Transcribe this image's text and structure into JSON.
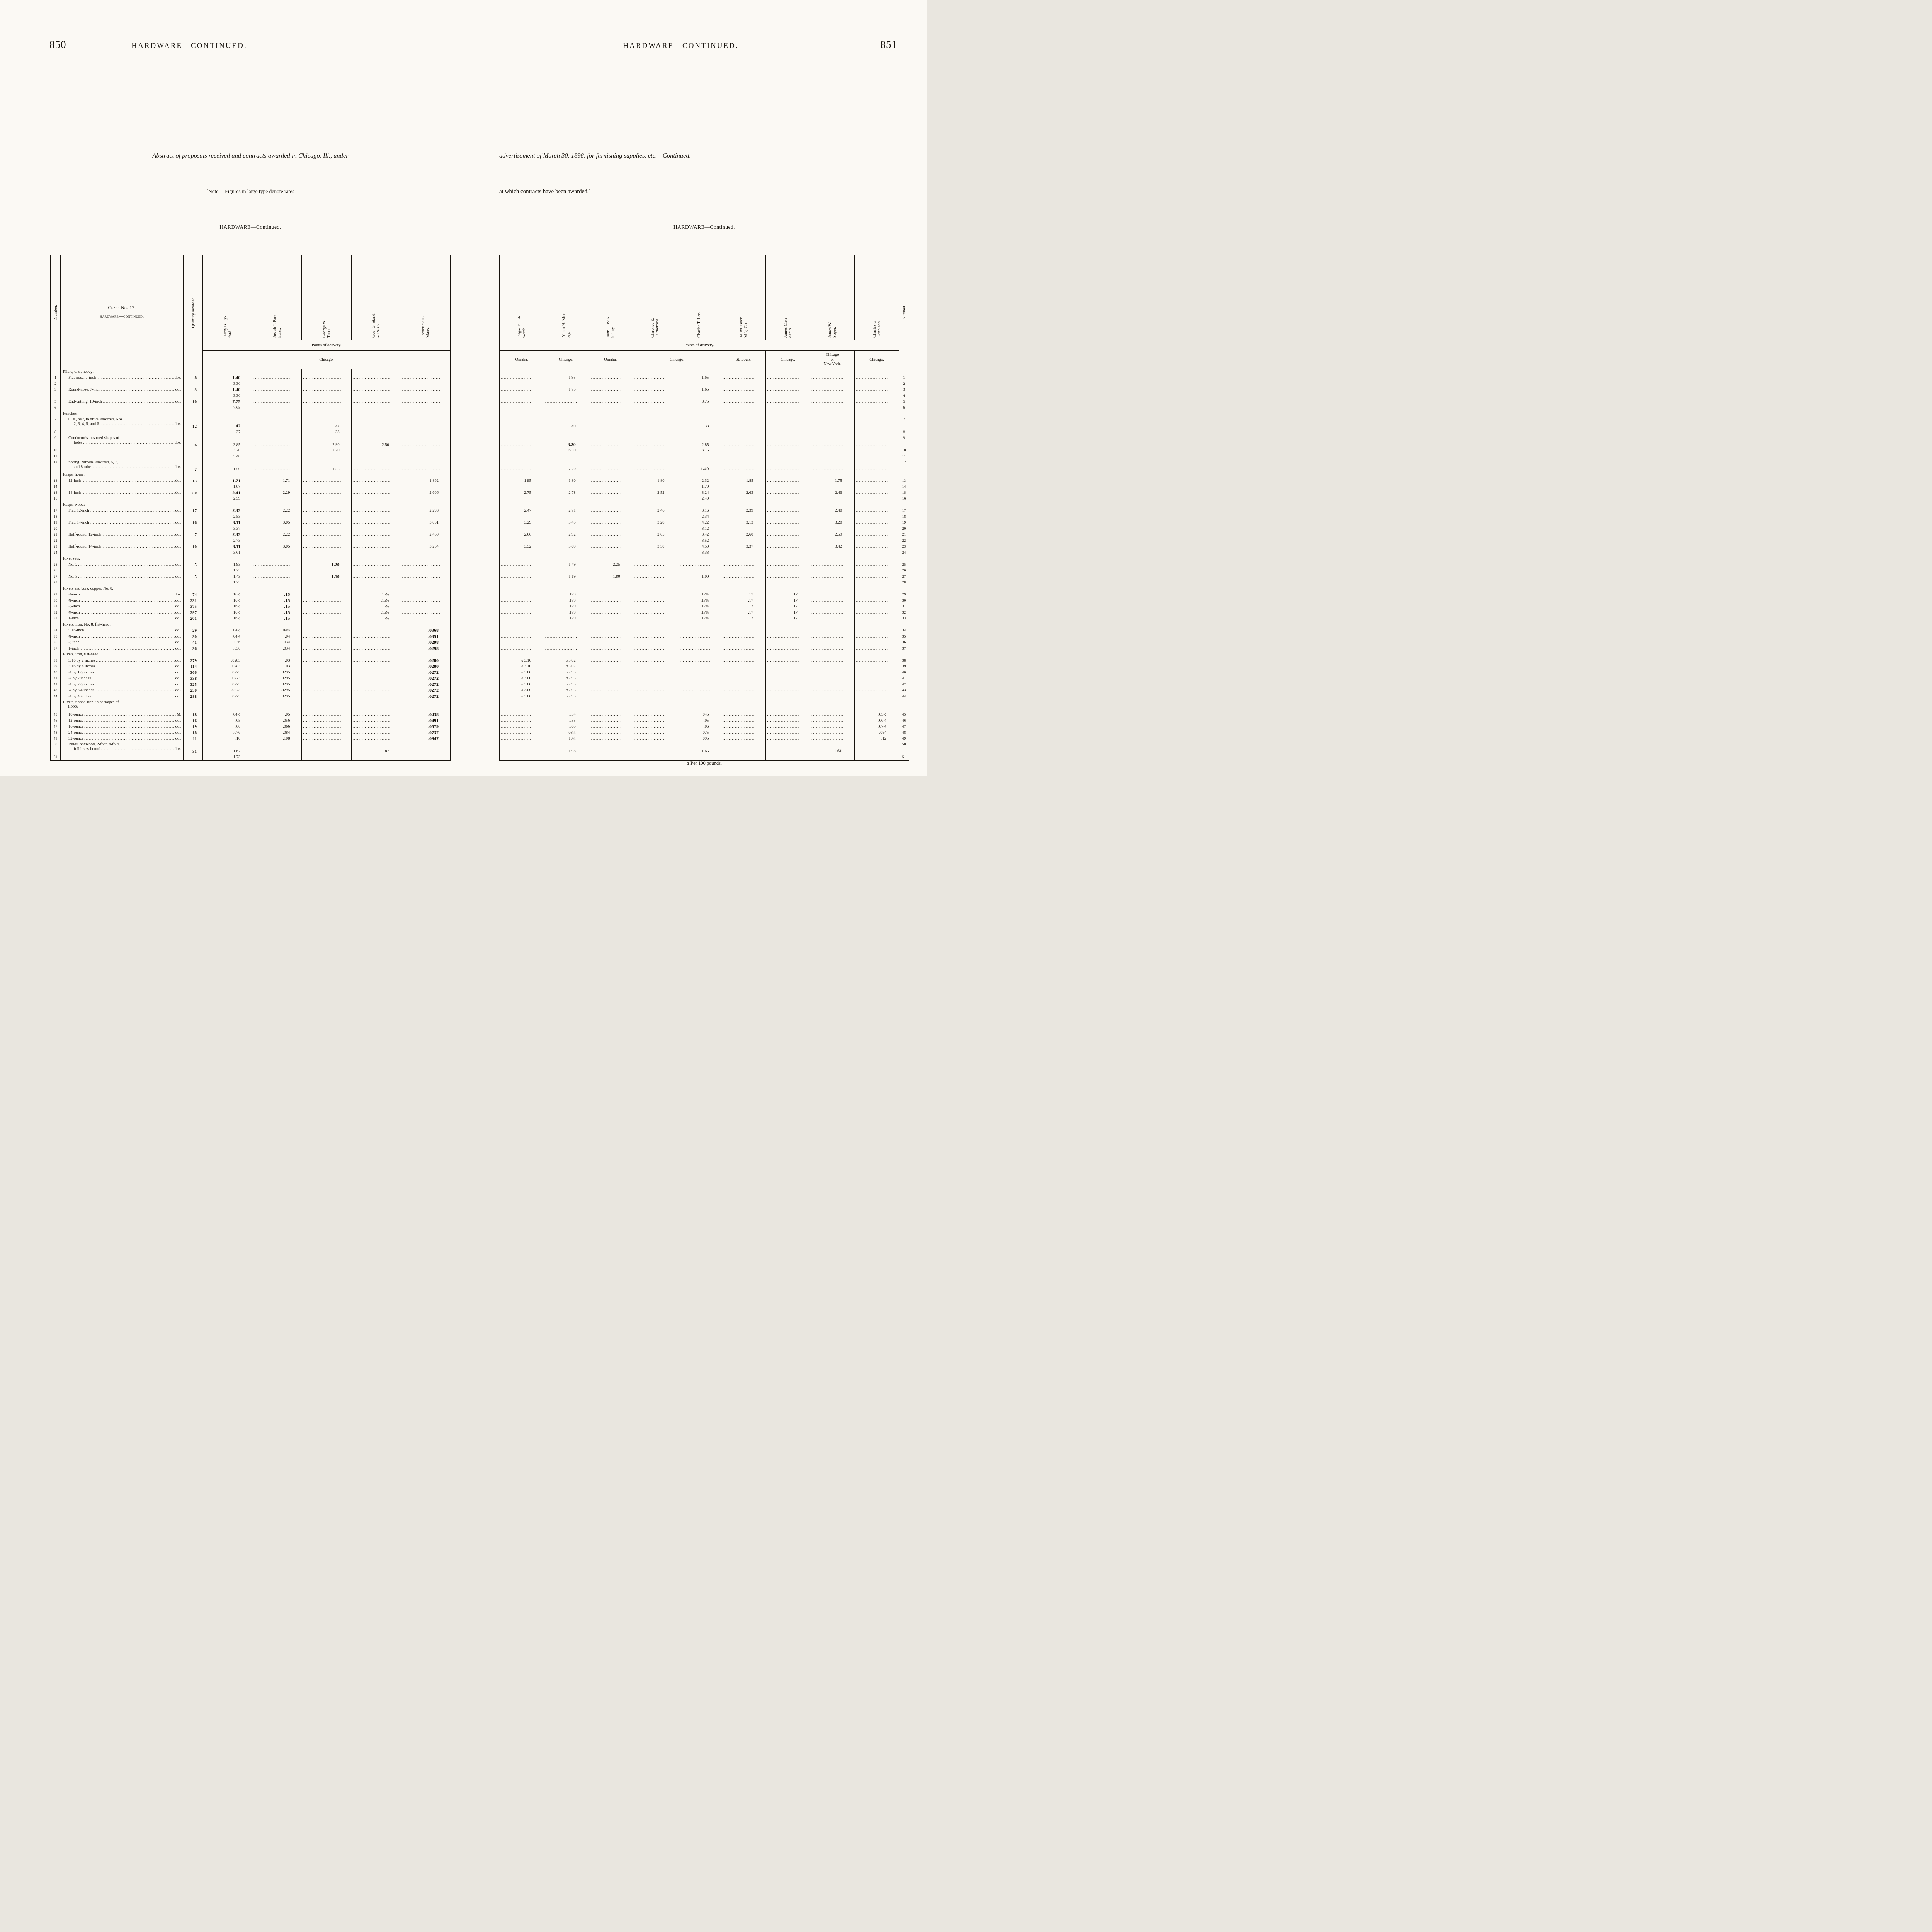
{
  "left_page": {
    "page_number": "850",
    "running_title": "HARDWARE—CONTINUED.",
    "intro_line": "Abstract of proposals received and contracts awarded in Chicago, Ill., under",
    "note_line": "[Note.—Figures in large type denote rates",
    "table_caption": "HARDWARE—Continued.",
    "columns": {
      "number": "Number.",
      "class_line1": "Class No. 17.",
      "class_line2": "hardware—continued.",
      "quantity": "Quantity awarded.",
      "bidders": [
        "Harry B. Ly-\nford.",
        "Josiah J. Park-\nhurst.",
        "George W.\nTrout.",
        "Geo. G. Stand-\nart & Co.",
        "Frederick K.\nMaus."
      ],
      "points_of_delivery": "Points of delivery.",
      "delivery_point": "Chicago."
    }
  },
  "right_page": {
    "page_number": "851",
    "running_title": "HARDWARE—CONTINUED.",
    "intro_line": "advertisement of March 30, 1898, for furnishing supplies, etc.—Continued.",
    "note_line": "at which contracts have been awarded.]",
    "table_caption": "HARDWARE—Continued.",
    "columns": {
      "number": "Number.",
      "bidders": [
        "Edgar E. Ed-\nwards.",
        "Albert H. Mor-\nley.",
        "John F. Wil-\nhelmy.",
        "Clarence E.\nDurborrow.",
        "Charles T. Lee.",
        "M. M. Buck\nMfg. Co.",
        "James Clen-\ndenin.",
        "James W.\nSoper.",
        "Charles G.\nDennison."
      ],
      "points_of_delivery": "Points of delivery.",
      "delivery_points": [
        {
          "label": "Omaha."
        },
        {
          "label": "Chicago."
        },
        {
          "label": "Omaha."
        },
        {
          "label": "Chicago."
        },
        {
          "label": "St. Louis."
        },
        {
          "label": "Chicago."
        },
        {
          "label": "Chicago\nor\nNew York."
        },
        {
          "label": "Chicago."
        }
      ]
    },
    "footnote_marker": "a",
    "footnote_text": "Per 100 pounds."
  },
  "rows": [
    {
      "hdr": "Pliers, c. s., heavy:"
    },
    {
      "n": "1",
      "item": "Flat-nose, 7-inch",
      "unit": "doz..",
      "qty": "8",
      "L": [
        "*1.40",
        "",
        "",
        "",
        ""
      ],
      "R": [
        "",
        "1.95",
        "",
        "",
        "1.65",
        "",
        "",
        "",
        ""
      ]
    },
    {
      "n": "2",
      "L": [
        "3.30"
      ],
      "R": []
    },
    {
      "n": "3",
      "item": "Round-nose, 7-inch",
      "unit": "do...",
      "qty": "3",
      "L": [
        "*1.40",
        "",
        "",
        "",
        ""
      ],
      "R": [
        "",
        "1.75",
        "",
        "",
        "1.65",
        "",
        "",
        "",
        ""
      ]
    },
    {
      "n": "4",
      "L": [
        "3.30"
      ],
      "R": []
    },
    {
      "n": "5",
      "item": "End-cutting, 10-inch",
      "unit": "do...",
      "qty": "10",
      "L": [
        "*7.75",
        "",
        "",
        "",
        ""
      ],
      "R": [
        "",
        "",
        "",
        "",
        "8.75",
        "",
        "",
        "",
        ""
      ]
    },
    {
      "n": "6",
      "L": [
        "7.65"
      ],
      "R": []
    },
    {
      "hdr": "Punches:"
    },
    {
      "n": "7",
      "item": "C. s., belt, to drive, assorted, Nos.",
      "item2": "2, 3, 4, 5, and 6",
      "unit": "doz..",
      "qty": "12",
      "tall": 1,
      "L": [
        "*.42",
        "",
        ".47",
        "",
        ""
      ],
      "R": [
        "",
        ".49",
        "",
        "",
        ".38",
        "",
        "",
        "",
        ""
      ]
    },
    {
      "n": "8",
      "L": [
        ".37",
        "",
        ".38"
      ],
      "R": []
    },
    {
      "n": "9",
      "item": "Conductor's, assorted shapes of",
      "item2": "holes",
      "unit": "doz..",
      "qty": "6",
      "tall": 1,
      "L": [
        "3.85",
        "",
        "2.90",
        "2.50",
        ""
      ],
      "R": [
        "",
        "*3.20",
        "",
        "",
        "2.85",
        "",
        "",
        "",
        ""
      ]
    },
    {
      "n": "10",
      "L": [
        "3.20",
        "",
        "2.20"
      ],
      "R": [
        "",
        "6.50",
        "",
        "",
        "3.75",
        "",
        "",
        "",
        ""
      ]
    },
    {
      "n": "11",
      "L": [
        "5.48"
      ],
      "R": []
    },
    {
      "n": "12",
      "item": "Spring, harness, assorted, 6, 7,",
      "item2": "and 8 tube",
      "unit": "doz..",
      "qty": "7",
      "tall": 1,
      "L": [
        "1.50",
        "",
        "1.55",
        "",
        ""
      ],
      "R": [
        "",
        "7.20",
        "",
        "",
        "*1.40",
        "",
        "",
        "",
        ""
      ]
    },
    {
      "hdr": "Rasps, horse:"
    },
    {
      "n": "13",
      "item": "12-inch",
      "unit": "do...",
      "qty": "13",
      "L": [
        "*1.71",
        "1.71",
        "",
        "",
        "1.862"
      ],
      "R": [
        "1 95",
        "1.80",
        "",
        "1.80",
        "2.32",
        "1.85",
        "",
        "1.75",
        ""
      ]
    },
    {
      "n": "14",
      "L": [
        "1.87"
      ],
      "R": [
        "",
        "",
        "",
        "",
        "1.70"
      ]
    },
    {
      "n": "15",
      "item": "14-inch",
      "unit": "do...",
      "qty": "50",
      "L": [
        "*2.41",
        "2.29",
        "",
        "",
        "2.606"
      ],
      "R": [
        "2.75",
        "2.78",
        "",
        "2.52",
        "3.24",
        "2.63",
        "",
        "2.46",
        ""
      ]
    },
    {
      "n": "16",
      "L": [
        "2.59"
      ],
      "R": [
        "",
        "",
        "",
        "",
        "2.40"
      ]
    },
    {
      "hdr": "Rasps, wood:"
    },
    {
      "n": "17",
      "item": "Flat, 12-inch",
      "unit": "do...",
      "qty": "17",
      "L": [
        "*2.33",
        "2.22",
        "",
        "",
        "2.293"
      ],
      "R": [
        "2.47",
        "2.71",
        "",
        "2.46",
        "3.16",
        "2.39",
        "",
        "2.40",
        ""
      ]
    },
    {
      "n": "18",
      "L": [
        "2.53"
      ],
      "R": [
        "",
        "",
        "",
        "",
        "2.34"
      ]
    },
    {
      "n": "19",
      "item": "Flat, 14-inch",
      "unit": "do...",
      "qty": "16",
      "L": [
        "*3.11",
        "3.05",
        "",
        "",
        "3.051"
      ],
      "R": [
        "3.29",
        "3.45",
        "",
        "3.28",
        "4.22",
        "3.13",
        "",
        "3.20",
        ""
      ]
    },
    {
      "n": "20",
      "L": [
        "3.37"
      ],
      "R": [
        "",
        "",
        "",
        "",
        "3.12"
      ]
    },
    {
      "n": "21",
      "item": "Half-round, 12-inch",
      "unit": "do...",
      "qty": "7",
      "L": [
        "*2.33",
        "2.22",
        "",
        "",
        "2.469"
      ],
      "R": [
        "2.66",
        "2.92",
        "",
        "2.65",
        "3.42",
        "2.60",
        "",
        "2.59",
        ""
      ]
    },
    {
      "n": "22",
      "L": [
        "2.73"
      ],
      "R": [
        "",
        "",
        "",
        "",
        "3.52"
      ]
    },
    {
      "n": "23",
      "item": "Half-round, 14-inch",
      "unit": "do...",
      "qty": "10",
      "L": [
        "*3.11",
        "3.05",
        "",
        "",
        "3.264"
      ],
      "R": [
        "3.52",
        "3.69",
        "",
        "3.50",
        "4.50",
        "3.37",
        "",
        "3.42",
        ""
      ]
    },
    {
      "n": "24",
      "L": [
        "3.61"
      ],
      "R": [
        "",
        "",
        "",
        "",
        "3.33"
      ]
    },
    {
      "hdr": "Rivet sets:"
    },
    {
      "n": "25",
      "item": "No. 2",
      "unit": "do...",
      "qty": "5",
      "L": [
        "1.93",
        "",
        "*1.20",
        "",
        ""
      ],
      "R": [
        "",
        "1.49",
        "2.25",
        "",
        "",
        "",
        "",
        "",
        ""
      ]
    },
    {
      "n": "26",
      "L": [
        "1.25"
      ],
      "R": []
    },
    {
      "n": "27",
      "item": "No. 3",
      "unit": "do...",
      "qty": "5",
      "L": [
        "1.43",
        "",
        "*1.10",
        "",
        ""
      ],
      "R": [
        "",
        "1.19",
        "1.80",
        "",
        "1.00",
        "",
        "",
        "",
        ""
      ]
    },
    {
      "n": "28",
      "L": [
        "1.25"
      ],
      "R": []
    },
    {
      "hdr": "Rivets and burs, copper, No. 8:"
    },
    {
      "n": "29",
      "item": "¼-inch",
      "unit": "lbs..",
      "qty": "74",
      "L": [
        ".16½",
        "*.15",
        "",
        ".15½",
        ""
      ],
      "R": [
        "",
        ".179",
        "",
        "",
        ".17¾",
        ".17",
        ".17",
        "",
        ""
      ]
    },
    {
      "n": "30",
      "item": "⅜-inch",
      "unit": "do...",
      "qty": "231",
      "L": [
        ".16½",
        "*.15",
        "",
        ".15½",
        ""
      ],
      "R": [
        "",
        ".179",
        "",
        "",
        ".17¾",
        ".17",
        ".17",
        "",
        ""
      ]
    },
    {
      "n": "31",
      "item": "½-inch",
      "unit": "do...",
      "qty": "375",
      "L": [
        ".16½",
        "*.15",
        "",
        ".15½",
        ""
      ],
      "R": [
        "",
        ".179",
        "",
        "",
        ".17¾",
        ".17",
        ".17",
        "",
        ""
      ]
    },
    {
      "n": "32",
      "item": "¾-inch",
      "unit": "do...",
      "qty": "297",
      "L": [
        ".16½",
        "*.15",
        "",
        ".15½",
        ""
      ],
      "R": [
        "",
        ".179",
        "",
        "",
        ".17¾",
        ".17",
        ".17",
        "",
        ""
      ]
    },
    {
      "n": "33",
      "item": "1-inch",
      "unit": "do...",
      "qty": "201",
      "L": [
        ".16½",
        "*.15",
        "",
        ".15½",
        ""
      ],
      "R": [
        "",
        ".179",
        "",
        "",
        ".17¾",
        ".17",
        ".17",
        "",
        ""
      ]
    },
    {
      "hdr": "Rivets, iron, No. 8, flat-head:"
    },
    {
      "n": "34",
      "item": "5/16-inch",
      "unit": "do...",
      "qty": "29",
      "L": [
        ".04½",
        ".04¼",
        "",
        "",
        "*.0368"
      ],
      "R": [
        "",
        "",
        "",
        "",
        "",
        "",
        "",
        "",
        ""
      ]
    },
    {
      "n": "35",
      "item": "⅜-inch",
      "unit": "do...",
      "qty": "30",
      "L": [
        ".04¼",
        ".04",
        "",
        "",
        "*.0351"
      ],
      "R": [
        "",
        "",
        "",
        "",
        "",
        "",
        "",
        "",
        ""
      ]
    },
    {
      "n": "36",
      "item": "½ inch",
      "unit": "do...",
      "qty": "41",
      "L": [
        ".036",
        ".034",
        "",
        "",
        "*.0298"
      ],
      "R": [
        "",
        "",
        "",
        "",
        "",
        "",
        "",
        "",
        ""
      ]
    },
    {
      "n": "37",
      "item": "1-inch",
      "unit": "do...",
      "qty": "36",
      "L": [
        ".036",
        ".034",
        "",
        "",
        "*.0298"
      ],
      "R": [
        "",
        "",
        "",
        "",
        "",
        "",
        "",
        "",
        ""
      ]
    },
    {
      "hdr": "Rivets, iron, flat-head:"
    },
    {
      "n": "38",
      "item": "3/16 by 2 inches",
      "unit": "do...",
      "qty": "279",
      "L": [
        ".0283",
        ".03",
        "",
        "",
        "*.0280"
      ],
      "R": [
        "a 3.10",
        "a 3.02",
        "",
        "",
        "",
        "",
        "",
        "",
        ""
      ]
    },
    {
      "n": "39",
      "item": "3/16 by 4 inches",
      "unit": "do...",
      "qty": "114",
      "L": [
        ".0283",
        ".03",
        "",
        "",
        "*.0280"
      ],
      "R": [
        "a 3.10",
        "a 3.02",
        "",
        "",
        "",
        "",
        "",
        "",
        ""
      ]
    },
    {
      "n": "40",
      "item": "¼ by 1½ inches",
      "unit": "do...",
      "qty": "366",
      "L": [
        ".0273",
        ".0295",
        "",
        "",
        "*.0272"
      ],
      "R": [
        "a 3.00",
        "a 2.93",
        "",
        "",
        "",
        "",
        "",
        "",
        ""
      ]
    },
    {
      "n": "41",
      "item": "¼ by 2 inches",
      "unit": "do...",
      "qty": "338",
      "L": [
        ".0273",
        ".0295",
        "",
        "",
        "*.0272"
      ],
      "R": [
        "a 3.00",
        "a 2.93",
        "",
        "",
        "",
        "",
        "",
        "",
        ""
      ]
    },
    {
      "n": "42",
      "item": "¼ by 2½ inches",
      "unit": "do...",
      "qty": "325",
      "L": [
        ".0273",
        ".0295",
        "",
        "",
        "*.0272"
      ],
      "R": [
        "a 3.00",
        "a 2.93",
        "",
        "",
        "",
        "",
        "",
        "",
        ""
      ]
    },
    {
      "n": "43",
      "item": "¼ by 3¼ inches",
      "unit": "do...",
      "qty": "230",
      "L": [
        ".0273",
        ".0295",
        "",
        "",
        "*.0272"
      ],
      "R": [
        "a 3.00",
        "a 2.93",
        "",
        "",
        "",
        "",
        "",
        "",
        ""
      ]
    },
    {
      "n": "44",
      "item": "¼ by 4 inches",
      "unit": "do...",
      "qty": "288",
      "L": [
        ".0273",
        ".0295",
        "",
        "",
        "*.0272"
      ],
      "R": [
        "a 3.00",
        "a 2.93",
        "",
        "",
        "",
        "",
        "",
        "",
        ""
      ]
    },
    {
      "hdr": "Rivets, tinned-iron, in packages of",
      "hdr2": "1,000:",
      "tall": 1
    },
    {
      "n": "45",
      "item": "10-ounce",
      "unit": "M..",
      "qty": "18",
      "L": [
        ".04½",
        ".05",
        "",
        "",
        "*.0438"
      ],
      "R": [
        "",
        ".054",
        "",
        "",
        ".045",
        "",
        "",
        "",
        ".05½"
      ]
    },
    {
      "n": "46",
      "item": "12-ounce",
      "unit": "do...",
      "qty": "16",
      "L": [
        ".05",
        ".056",
        "",
        "",
        "*.0491"
      ],
      "R": [
        "",
        ".055",
        "",
        "",
        ".05",
        "",
        "",
        "",
        ".06¼"
      ]
    },
    {
      "n": "47",
      "item": "16-ounce",
      "unit": "do...",
      "qty": "19",
      "L": [
        ".06",
        ".066",
        "",
        "",
        "*.0579"
      ],
      "R": [
        "",
        ".065",
        "",
        "",
        ".06",
        "",
        "",
        "",
        ".07¼"
      ]
    },
    {
      "n": "48",
      "item": "24-ounce",
      "unit": "do...",
      "qty": "18",
      "L": [
        ".076",
        ".084",
        "",
        "",
        "*.0737"
      ],
      "R": [
        "",
        ".08¼",
        "",
        "",
        ".075",
        "",
        "",
        "",
        ".094"
      ]
    },
    {
      "n": "49",
      "item": "32-ounce",
      "unit": "do...",
      "qty": "11",
      "L": [
        ".10",
        ".108",
        "",
        "",
        "*.0947"
      ],
      "R": [
        "",
        ".10¼",
        "",
        "",
        ".095",
        "",
        "",
        "",
        ".12"
      ]
    },
    {
      "n": "50",
      "item": "Rules, boxwood, 2-foot, 4-fold,",
      "item2": "full brass-bound",
      "unit": "doz..",
      "qty": "31",
      "tall": 1,
      "L": [
        "1.62",
        "",
        "",
        "187",
        ""
      ],
      "R": [
        "",
        "1.98",
        "",
        "",
        "1.65",
        "",
        "",
        "*1.61",
        ""
      ]
    },
    {
      "n": "51",
      "L": [
        "1.73"
      ],
      "R": []
    }
  ]
}
